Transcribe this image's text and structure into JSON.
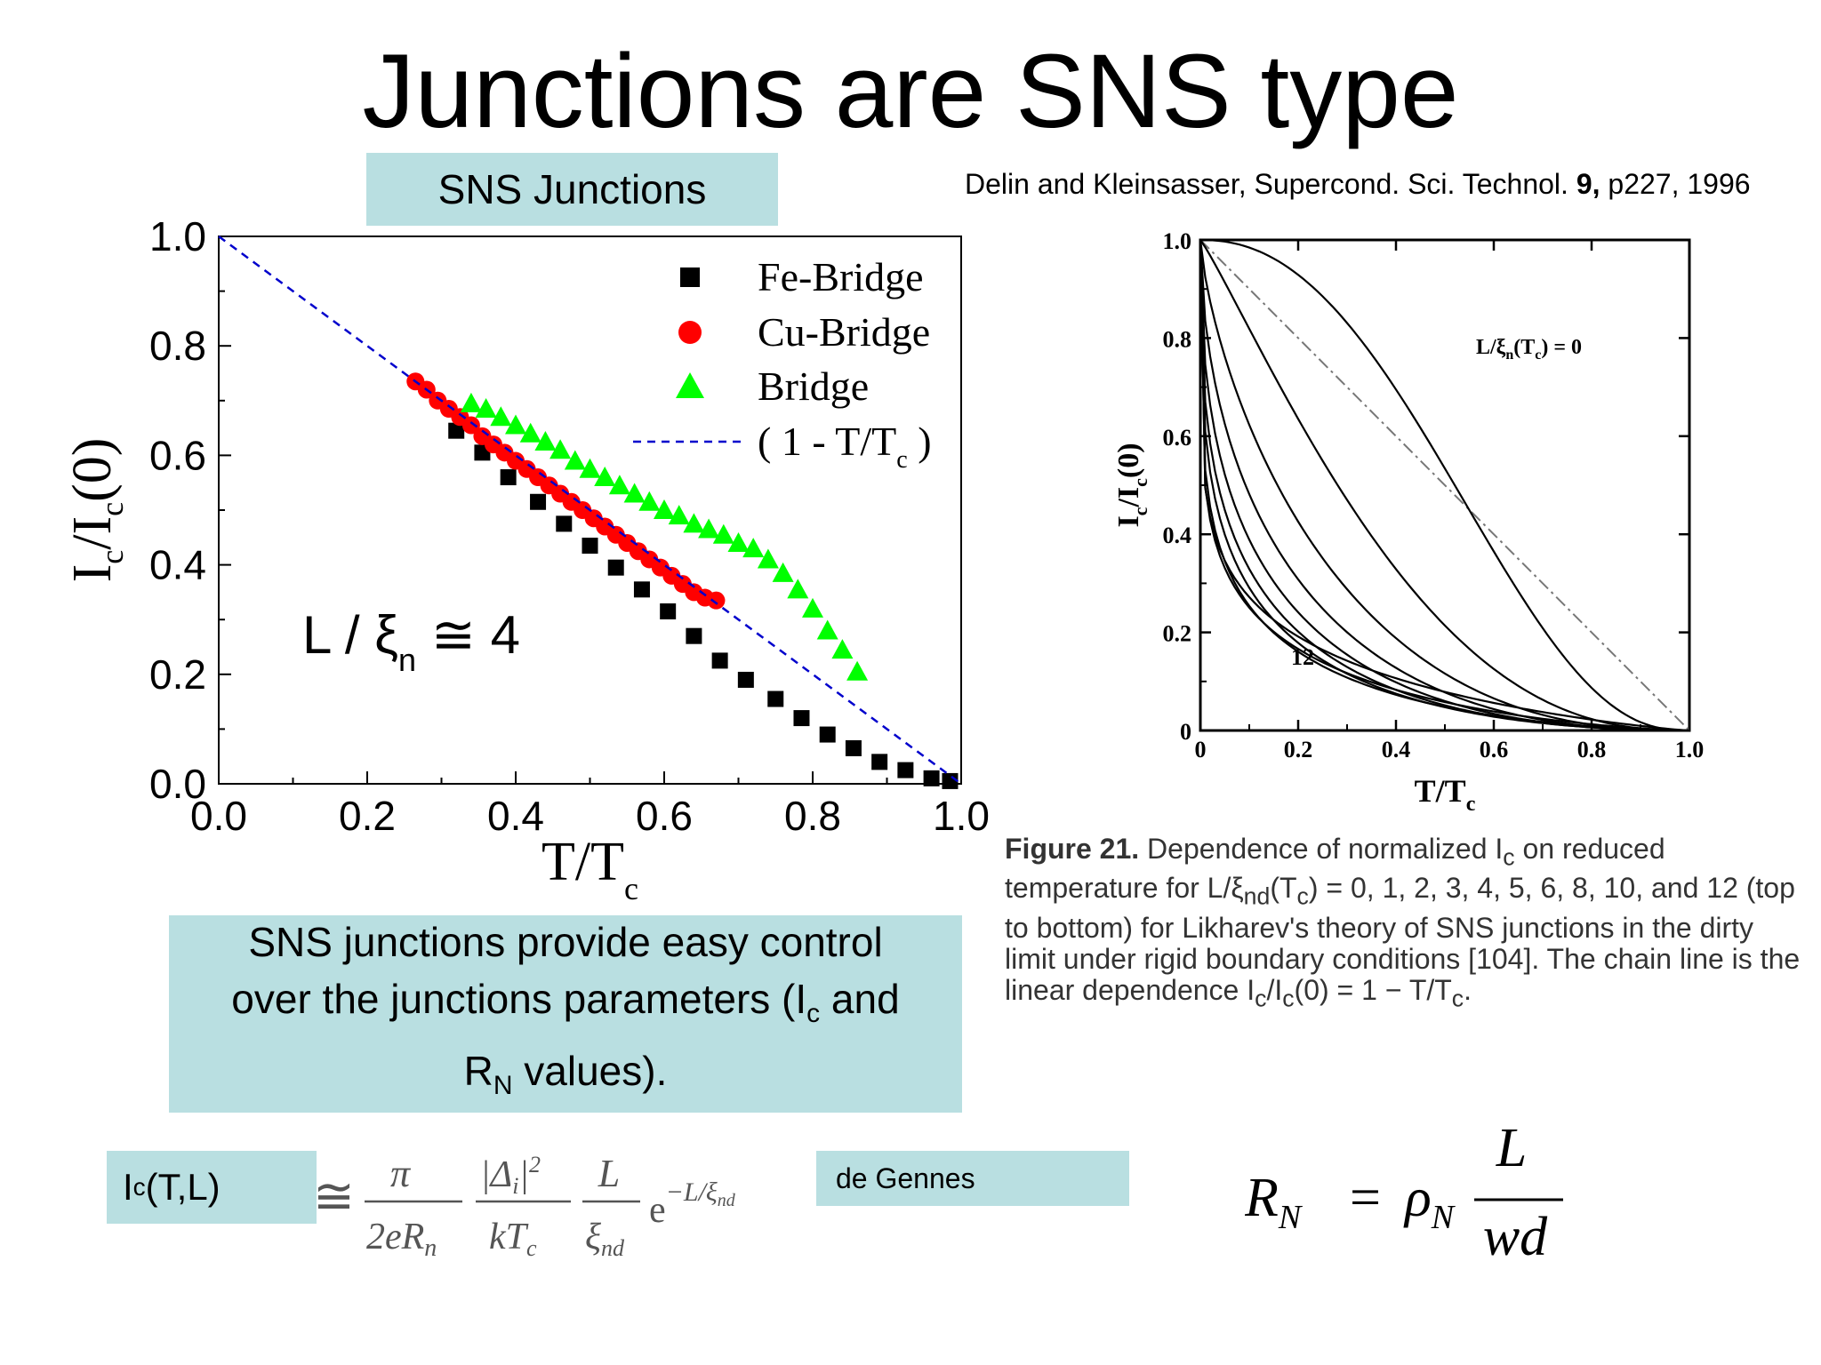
{
  "title": "Junctions are SNS type",
  "sns_label": "SNS Junctions",
  "reference": {
    "authors": "Delin and Kleinsasser, Supercond. Sci. Technol.",
    "volume": "9,",
    "rest": "p227, 1996"
  },
  "note": {
    "line1": "SNS junctions provide easy control",
    "line2a": "over the junctions parameters (I",
    "line2sub": "c",
    "line2b": " and",
    "line3a": "R",
    "line3sub": "N",
    "line3b": " values)."
  },
  "formula_label": {
    "main": "I",
    "sub": "c",
    "rest": "(T,L)"
  },
  "de_gennes": "de Gennes",
  "formula_left": {
    "approx": "≅",
    "num1": "π",
    "den1": "2eR",
    "den1sub": "n",
    "num2": "|Δ",
    "num2sub": "i",
    "num2rest": "|",
    "num2sup": "2",
    "den2": "kT",
    "den2sub": "c",
    "num3": "L",
    "den3": "ξ",
    "den3sub": "nd",
    "exp": "e",
    "exp_sup": "−L/ξ",
    "exp_supsub": "nd"
  },
  "formula_right": {
    "lhs": "R",
    "lhs_sub": "N",
    "eq": "=",
    "rho": "ρ",
    "rho_sub": "N",
    "num": "L",
    "den": "wd"
  },
  "caption": {
    "label": "Figure 21.",
    "text": " Dependence of normalized I",
    "text_sub": "c",
    "text2": " on reduced temperature for L/ξ",
    "text2_sub": "nd",
    "text3": "(T",
    "text3_sub": "c",
    "text4": ") = 0, 1, 2, 3, 4, 5, 6, 8, 10, and 12 (top to bottom) for Likharev's theory of SNS junctions in the dirty limit under rigid boundary conditions [104]. The chain line is the linear dependence I",
    "text4_sub": "c",
    "text5": "/I",
    "text5_sub": "c",
    "text6": "(0) = 1 − T/T",
    "text6_sub": "c",
    "text7": "."
  },
  "chart_data": [
    {
      "type": "scatter",
      "xlabel": "T/T",
      "xlabel_sub": "c",
      "ylabel": "I",
      "ylabel_sub": "c",
      "ylabel_mid": "/I",
      "ylabel_sub2": "c",
      "ylabel_rest": "(0)",
      "xlim": [
        0,
        1.0
      ],
      "ylim": [
        0,
        1.0
      ],
      "xticks": [
        "0.0",
        "0.2",
        "0.4",
        "0.6",
        "0.8",
        "1.0"
      ],
      "yticks": [
        "0.0",
        "0.2",
        "0.4",
        "0.6",
        "0.8",
        "1.0"
      ],
      "legend_position": "top-right",
      "annotation": {
        "text": "L / ξ",
        "sub": "n",
        "rest": " ≅ 4"
      },
      "series": [
        {
          "name": "Fe-Bridge",
          "marker": "square",
          "color": "#000000",
          "x": [
            0.32,
            0.355,
            0.39,
            0.43,
            0.465,
            0.5,
            0.535,
            0.57,
            0.605,
            0.64,
            0.675,
            0.71,
            0.75,
            0.785,
            0.82,
            0.855,
            0.89,
            0.925,
            0.96,
            0.985
          ],
          "y": [
            0.645,
            0.605,
            0.56,
            0.515,
            0.475,
            0.435,
            0.395,
            0.355,
            0.315,
            0.27,
            0.225,
            0.19,
            0.155,
            0.12,
            0.09,
            0.065,
            0.04,
            0.025,
            0.01,
            0.005
          ]
        },
        {
          "name": "Cu-Bridge",
          "marker": "circle",
          "color": "#ff0000",
          "x": [
            0.265,
            0.28,
            0.295,
            0.31,
            0.325,
            0.34,
            0.355,
            0.37,
            0.385,
            0.4,
            0.415,
            0.43,
            0.445,
            0.46,
            0.475,
            0.49,
            0.505,
            0.52,
            0.535,
            0.55,
            0.565,
            0.58,
            0.595,
            0.61,
            0.625,
            0.64,
            0.655,
            0.67
          ],
          "y": [
            0.735,
            0.72,
            0.7,
            0.685,
            0.67,
            0.655,
            0.635,
            0.62,
            0.605,
            0.59,
            0.575,
            0.56,
            0.545,
            0.53,
            0.515,
            0.5,
            0.485,
            0.47,
            0.455,
            0.44,
            0.425,
            0.41,
            0.395,
            0.38,
            0.365,
            0.35,
            0.34,
            0.335
          ]
        },
        {
          "name": "Bridge",
          "marker": "triangle",
          "color": "#00ff00",
          "x": [
            0.34,
            0.36,
            0.38,
            0.4,
            0.42,
            0.44,
            0.46,
            0.48,
            0.5,
            0.52,
            0.54,
            0.56,
            0.58,
            0.6,
            0.62,
            0.64,
            0.66,
            0.68,
            0.7,
            0.72,
            0.74,
            0.76,
            0.78,
            0.8,
            0.82,
            0.84,
            0.86
          ],
          "y": [
            0.695,
            0.685,
            0.67,
            0.655,
            0.64,
            0.625,
            0.61,
            0.59,
            0.575,
            0.56,
            0.545,
            0.53,
            0.515,
            0.5,
            0.49,
            0.475,
            0.465,
            0.455,
            0.44,
            0.43,
            0.41,
            0.385,
            0.355,
            0.32,
            0.28,
            0.245,
            0.205
          ]
        },
        {
          "name": "( 1 - T/T",
          "name_sub": "c",
          "name_rest": " )",
          "marker": "line",
          "color": "#0000cc",
          "x": [
            0,
            1
          ],
          "y": [
            1,
            0
          ]
        }
      ]
    },
    {
      "type": "line",
      "xlabel": "T/T",
      "xlabel_sub": "c",
      "ylabel": "I",
      "ylabel_sub": "c",
      "ylabel_mid": "/I",
      "ylabel_sub2": "c",
      "ylabel_rest": "(0)",
      "xlim": [
        0,
        1.0
      ],
      "ylim": [
        0,
        1.0
      ],
      "xticks": [
        "0",
        "0.2",
        "0.4",
        "0.6",
        "0.8",
        "1.0"
      ],
      "yticks": [
        "0",
        "0.2",
        "0.4",
        "0.6",
        "0.8",
        "1.0"
      ],
      "annotation_top": {
        "text": "L/ξ",
        "sub": "n",
        "mid": "(T",
        "sub2": "c",
        "rest": ") = 0"
      },
      "annotation_bottom": "12",
      "curve_params": [
        0,
        1,
        2,
        3,
        4,
        5,
        6,
        8,
        10,
        12
      ]
    }
  ]
}
